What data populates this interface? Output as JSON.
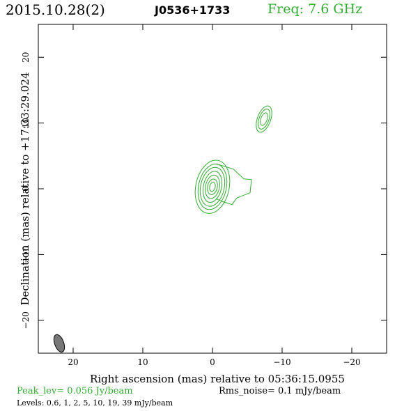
{
  "header": {
    "date": "2015.10.28(2)",
    "source": "J0536+1733",
    "freq": "Freq: 7.6 GHz"
  },
  "footer": {
    "peak": "Peak_lev=  0.056 Jy/beam",
    "rms": "Rms_noise=   0.1 mJy/beam",
    "levels": "Levels: 0.6,    1,    2,    5,   10,   19,   39 mJy/beam"
  },
  "colors": {
    "contour": "#33aa33",
    "beam": "#777777",
    "freq": "#33aa33"
  },
  "chart_data": {
    "type": "contour",
    "xlabel": "Right ascension (mas) relative to 05:36:15.0955",
    "ylabel": "Declination (mas) relative to +17:33:29.024",
    "xlim": [
      25,
      -25
    ],
    "ylim": [
      -25,
      25
    ],
    "xticks": [
      20,
      10,
      0,
      -10,
      -20
    ],
    "xtick_labels": [
      "20",
      "10",
      "0",
      "−10",
      "−20"
    ],
    "yticks": [
      20,
      10,
      0,
      -10,
      -20
    ],
    "ytick_labels": [
      "20",
      "10",
      "0",
      "−10",
      "−20"
    ],
    "levels_mJy": [
      0.6,
      1,
      2,
      5,
      10,
      19,
      39
    ],
    "components": [
      {
        "name": "core",
        "x": 0.0,
        "y": 0.3,
        "contours": [
          {
            "rx": 2.4,
            "ry": 4.1,
            "angle": 12
          },
          {
            "rx": 2.0,
            "ry": 3.5,
            "angle": 12
          },
          {
            "rx": 1.7,
            "ry": 3.0,
            "angle": 12
          },
          {
            "rx": 1.3,
            "ry": 2.4,
            "angle": 12
          },
          {
            "rx": 1.0,
            "ry": 1.8,
            "angle": 12
          },
          {
            "rx": 0.7,
            "ry": 1.2,
            "angle": 12
          },
          {
            "rx": 0.4,
            "ry": 0.7,
            "angle": 12
          }
        ],
        "extension": {
          "points": [
            [
              -0.5,
              3.8
            ],
            [
              -3.0,
              3.0
            ],
            [
              -4.5,
              1.5
            ],
            [
              -5.6,
              1.4
            ],
            [
              -5.4,
              -0.6
            ],
            [
              -3.5,
              -1.4
            ],
            [
              -2.8,
              -2.4
            ],
            [
              -1.6,
              -2.0
            ],
            [
              -0.5,
              -1.5
            ]
          ]
        }
      },
      {
        "name": "knot",
        "x": -7.4,
        "y": 10.6,
        "contours": [
          {
            "rx": 0.95,
            "ry": 2.1,
            "angle": 20
          },
          {
            "rx": 0.7,
            "ry": 1.6,
            "angle": 20
          },
          {
            "rx": 0.45,
            "ry": 1.0,
            "angle": 20
          }
        ]
      }
    ],
    "beam": {
      "x": 22.0,
      "y": -23.5,
      "major": 2.8,
      "minor": 1.3,
      "pa": 20
    }
  }
}
